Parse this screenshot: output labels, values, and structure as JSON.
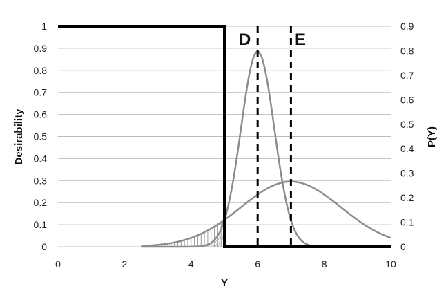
{
  "chart_data": {
    "type": "line",
    "xlabel": "Y",
    "ylabel_left": "Desirability",
    "ylabel_right": "P(Y)",
    "xlim": [
      0,
      10
    ],
    "ylim_left": [
      0,
      1
    ],
    "ylim_right": [
      0,
      0.9
    ],
    "x_ticks": [
      "0",
      "2",
      "4",
      "6",
      "8",
      "10"
    ],
    "y_ticks_left": [
      "0",
      "0.1",
      "0.2",
      "0.3",
      "0.4",
      "0.5",
      "0.6",
      "0.7",
      "0.8",
      "0.9",
      "1"
    ],
    "y_ticks_right": [
      "0",
      "0.1",
      "0.2",
      "0.3",
      "0.4",
      "0.5",
      "0.6",
      "0.7",
      "0.8",
      "0.9"
    ],
    "grid": true,
    "desirability_step": {
      "x": [
        0,
        5,
        5,
        10
      ],
      "y": [
        1,
        1,
        0,
        0
      ]
    },
    "distribution_D": {
      "mean": 6,
      "sd": 0.5,
      "x_range": [
        2.5,
        8
      ]
    },
    "distribution_E": {
      "mean": 7,
      "sd": 1.5,
      "x_range": [
        2.5,
        10
      ]
    },
    "hatched_region_x": [
      2.5,
      5
    ],
    "reference_lines": [
      {
        "x": 6,
        "label": "D"
      },
      {
        "x": 7,
        "label": "E"
      }
    ],
    "colors": {
      "step": "#000000",
      "curve": "#8c8c8c",
      "grid": "#bdbdbd",
      "dash": "#000000"
    }
  }
}
